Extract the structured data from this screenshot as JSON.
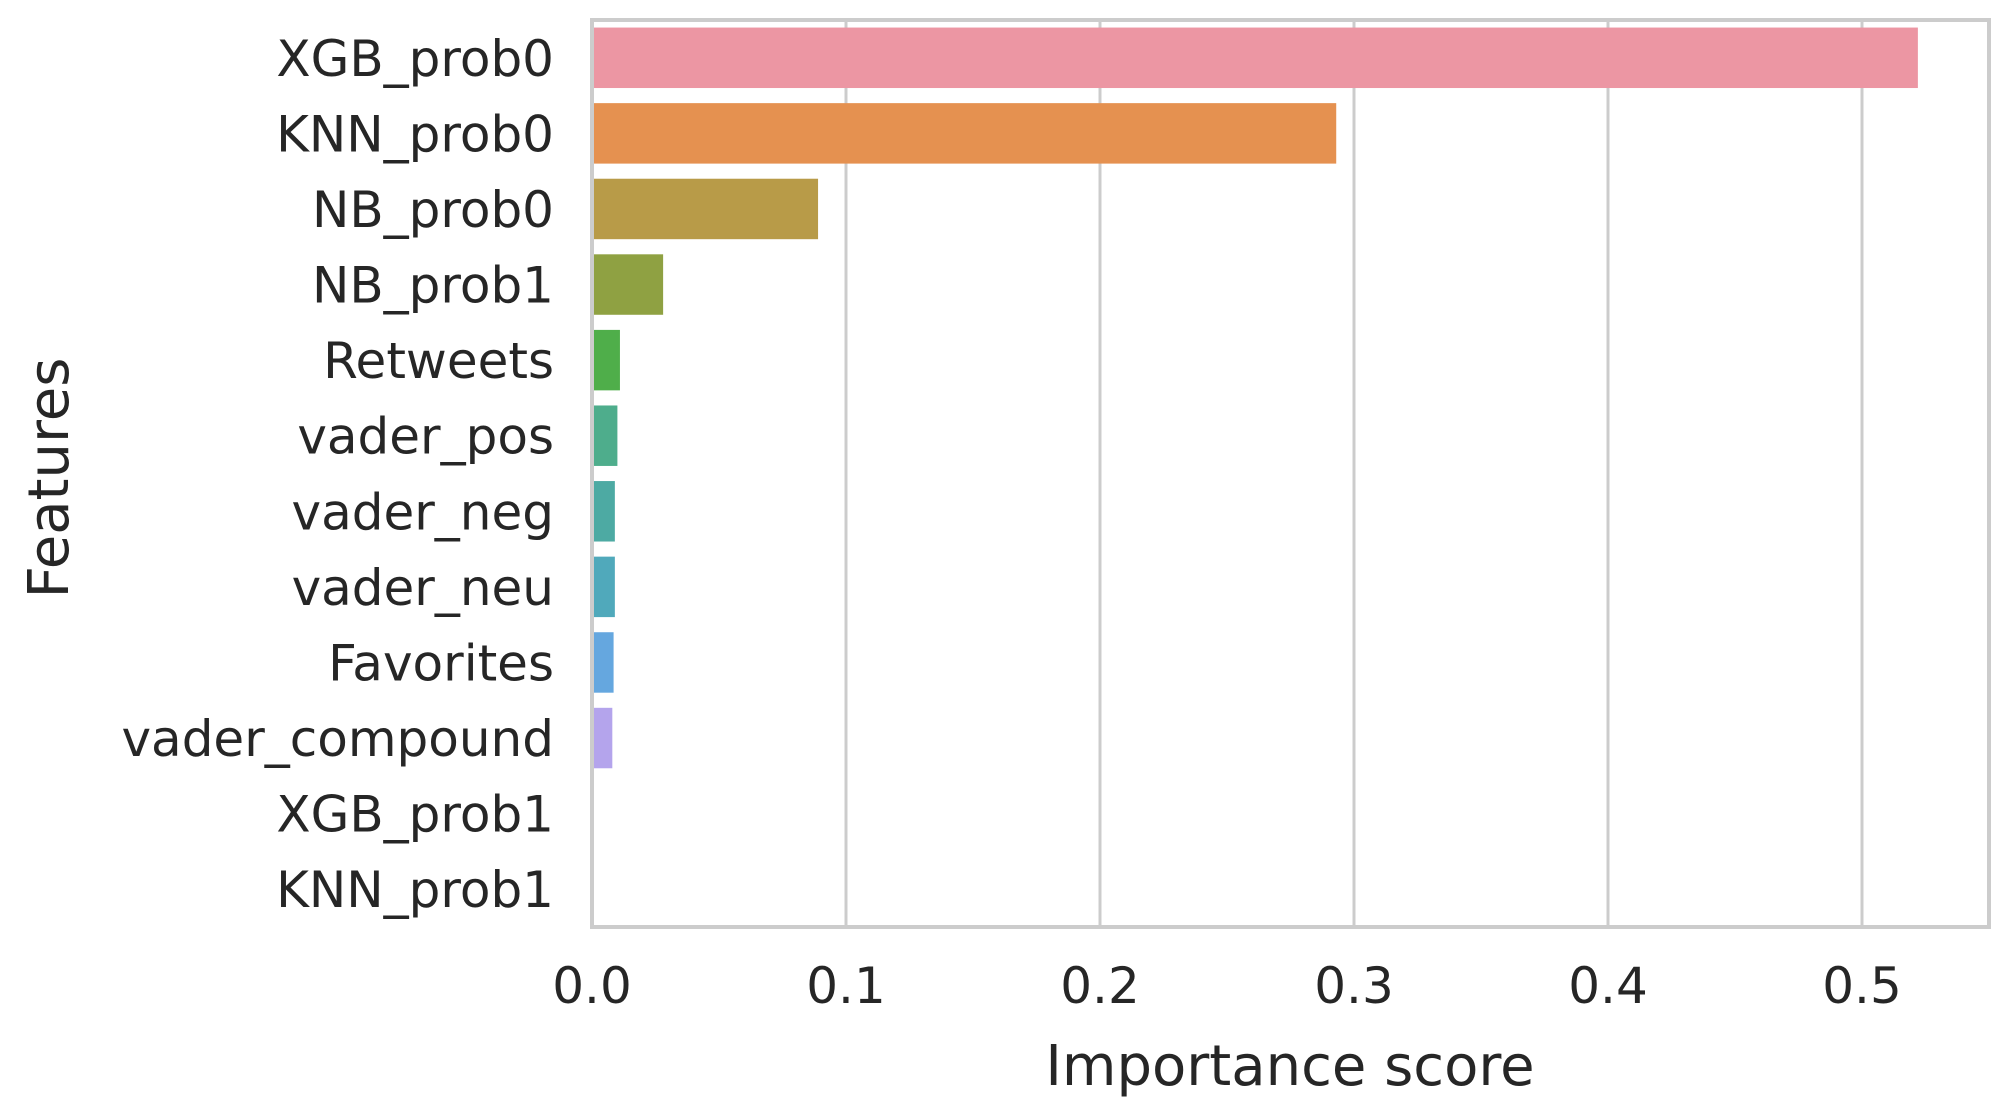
{
  "chart_data": {
    "type": "bar",
    "orientation": "horizontal",
    "xlabel": "Importance score",
    "ylabel": "Features",
    "xlim": [
      0,
      0.55
    ],
    "xticks": [
      "0.0",
      "0.1",
      "0.2",
      "0.3",
      "0.4",
      "0.5"
    ],
    "grid": "vertical",
    "categories": [
      "XGB_prob0",
      "KNN_prob0",
      "NB_prob0",
      "NB_prob1",
      "Retweets",
      "vader_pos",
      "vader_neg",
      "vader_neu",
      "Favorites",
      "vader_compound",
      "XGB_prob1",
      "KNN_prob1"
    ],
    "values": [
      0.522,
      0.293,
      0.089,
      0.028,
      0.011,
      0.01,
      0.009,
      0.009,
      0.0085,
      0.008,
      0,
      0
    ],
    "colors": [
      "#ec96a3",
      "#e59150",
      "#b89b48",
      "#8fa142",
      "#4fae4a",
      "#4ead8c",
      "#4daaa3",
      "#50a9bb",
      "#65a7df",
      "#b4a4ec",
      "#e69be2",
      "#ec8fc4"
    ]
  }
}
